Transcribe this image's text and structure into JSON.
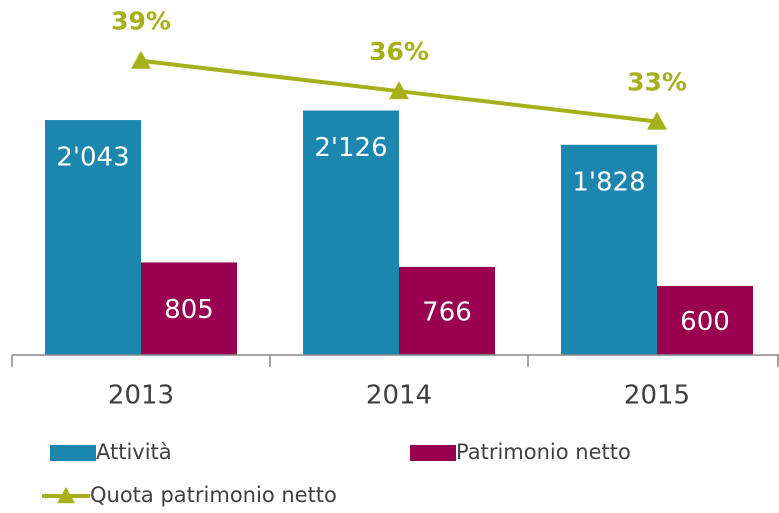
{
  "chart_data": {
    "type": "bar",
    "categories": [
      "2013",
      "2014",
      "2015"
    ],
    "series": [
      {
        "name": "Attività",
        "color": "#1b87ae",
        "values": [
          2043,
          2126,
          1828
        ],
        "value_labels": [
          "2'043",
          "2'126",
          "1'828"
        ]
      },
      {
        "name": "Patrimonio netto",
        "color": "#990050",
        "values": [
          805,
          766,
          600
        ],
        "value_labels": [
          "805",
          "766",
          "600"
        ]
      },
      {
        "name": "Quota patrimonio netto",
        "color": "#a5b01b",
        "type": "line",
        "axis": "y2",
        "values": [
          39,
          36,
          33
        ],
        "value_labels": [
          "39%",
          "36%",
          "33%"
        ]
      }
    ],
    "ylim": [
      0,
      3000
    ],
    "y2lim": [
      10,
      44
    ],
    "grid": false
  }
}
